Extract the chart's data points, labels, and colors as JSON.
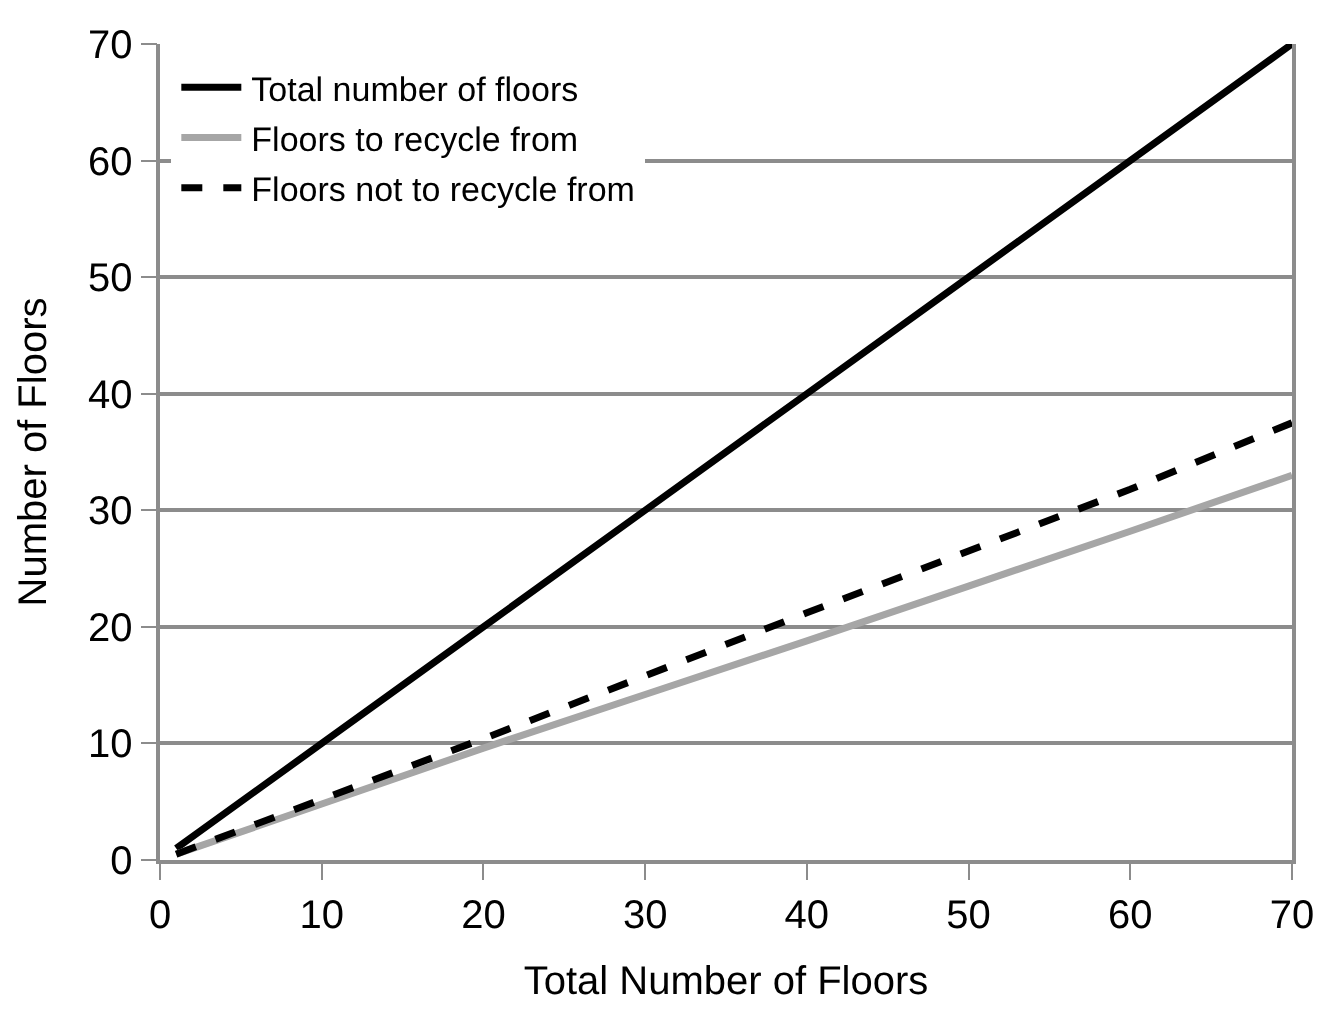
{
  "chart_data": {
    "type": "line",
    "xlabel": "Total Number of Floors",
    "ylabel": "Number of Floors",
    "x": [
      1,
      10,
      20,
      30,
      40,
      50,
      60,
      70
    ],
    "series": [
      {
        "name": "Total number of floors",
        "color": "#000000",
        "line_style": "solid",
        "values": [
          1,
          10,
          20,
          30,
          40,
          50,
          60,
          70
        ]
      },
      {
        "name": "Floors to recycle from",
        "color": "#a6a6a6",
        "line_style": "solid",
        "values": [
          0.5,
          4.8,
          9.6,
          14.2,
          18.8,
          23.5,
          28.2,
          33
        ]
      },
      {
        "name": "Floors not to recycle from",
        "color": "#000000",
        "line_style": "dashed",
        "values": [
          0.5,
          5.2,
          10.4,
          15.8,
          21.2,
          26.5,
          31.8,
          37.5
        ]
      }
    ],
    "xlim": [
      0,
      70
    ],
    "ylim": [
      0,
      70
    ],
    "xticks": [
      0,
      10,
      20,
      30,
      40,
      50,
      60,
      70
    ],
    "yticks": [
      0,
      10,
      20,
      30,
      40,
      50,
      60,
      70
    ],
    "grid": "y",
    "legend": "top left",
    "marker": "none"
  }
}
